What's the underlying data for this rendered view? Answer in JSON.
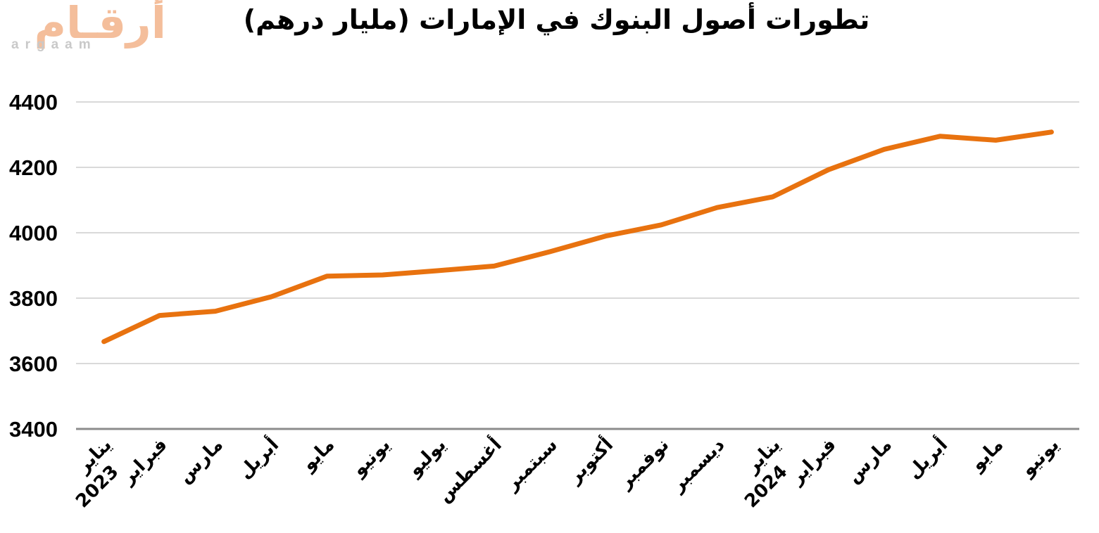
{
  "logo": {
    "arabic_text": "أرقـام",
    "latin_text": "argaam",
    "arabic_color": "#F4BE9B",
    "latin_color": "#C9C9C9"
  },
  "chart_data": {
    "type": "line",
    "title": "تطورات أصول البنوك في الإمارات (مليار درهم)",
    "categories": [
      "يناير 2023",
      "فبراير",
      "مارس",
      "أبريل",
      "مايو",
      "يونيو",
      "يوليو",
      "أغسطس",
      "سبتمبر",
      "أكتوبر",
      "نوفمبر",
      "ديسمبر",
      "يناير 2024",
      "فبراير",
      "مارس",
      "أبريل",
      "مايو",
      "يونيو"
    ],
    "values": [
      3667,
      3747,
      3760,
      3804,
      3867,
      3871,
      3884,
      3898,
      3942,
      3990,
      4024,
      4077,
      4110,
      4193,
      4255,
      4295,
      4283,
      4308
    ],
    "xlabel": "",
    "ylabel": "",
    "ylim": [
      3400,
      4400
    ],
    "yticks": [
      3400,
      3600,
      3800,
      4000,
      4200,
      4400
    ],
    "grid": true,
    "legend": false,
    "x_labels_rotation_deg": 45,
    "line_color": "#E8720F",
    "grid_color": "#D9D9D9",
    "axis_color": "#8C8C8C",
    "label_color": "#000000"
  }
}
